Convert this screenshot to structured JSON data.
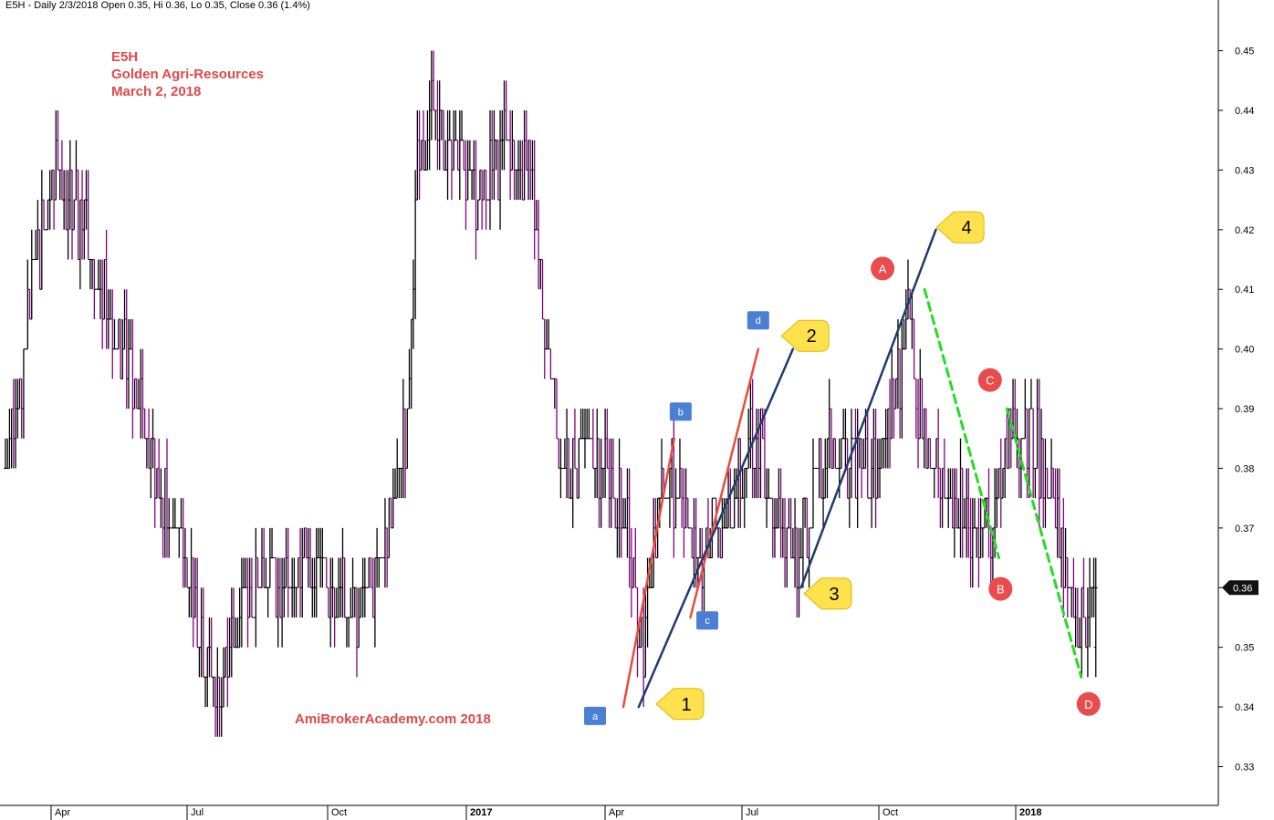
{
  "header": {
    "symbol": "E5H",
    "info": "Daily 2/3/2018 Open 0.35, Hi 0.36, Lo 0.35, Close 0.36 (1.4%)"
  },
  "title_lines": [
    "E5H",
    "Golden Agri-Resources",
    "March 2, 2018"
  ],
  "watermark": "AmiBrokerAcademy.com  2018",
  "chart_data": {
    "type": "bar",
    "subtype": "ohlc-price-bars",
    "y_ticks": [
      0.33,
      0.34,
      0.35,
      0.36,
      0.37,
      0.38,
      0.39,
      0.4,
      0.41,
      0.42,
      0.43,
      0.44,
      0.45
    ],
    "y_tick_labels": [
      "0.33",
      "0.34",
      "0.35",
      "0.36",
      "0.37",
      "0.38",
      "0.39",
      "0.40",
      "0.41",
      "0.42",
      "0.43",
      "0.44",
      "0.45"
    ],
    "ylim": [
      0.3235,
      0.4585
    ],
    "x_ticks": [
      {
        "label": "Apr",
        "bold": false
      },
      {
        "label": "Jul",
        "bold": false
      },
      {
        "label": "Oct",
        "bold": false
      },
      {
        "label": "2017",
        "bold": true
      },
      {
        "label": "Apr",
        "bold": false
      },
      {
        "label": "Jul",
        "bold": false
      },
      {
        "label": "Oct",
        "bold": false
      },
      {
        "label": "2018",
        "bold": true
      }
    ],
    "last_price_label": "0.36",
    "last_price": 0.36,
    "bar_colors": {
      "up": "#000000",
      "down": "#800080"
    },
    "price_path": [
      [
        0,
        0.38
      ],
      [
        6,
        0.43
      ],
      [
        10,
        0.42
      ],
      [
        14,
        0.4
      ],
      [
        17,
        0.39
      ],
      [
        20,
        0.37
      ],
      [
        23,
        0.36
      ],
      [
        26,
        0.34
      ],
      [
        29,
        0.355
      ],
      [
        33,
        0.36
      ],
      [
        37,
        0.365
      ],
      [
        40,
        0.36
      ],
      [
        43,
        0.355
      ],
      [
        46,
        0.36
      ],
      [
        48,
        0.375
      ],
      [
        50,
        0.39
      ],
      [
        51,
        0.43
      ],
      [
        53,
        0.44
      ],
      [
        56,
        0.43
      ],
      [
        59,
        0.425
      ],
      [
        62,
        0.435
      ],
      [
        65,
        0.43
      ],
      [
        67,
        0.4
      ],
      [
        69,
        0.38
      ],
      [
        72,
        0.385
      ],
      [
        74,
        0.38
      ],
      [
        76,
        0.375
      ],
      [
        77.5,
        0.365
      ],
      [
        78.5,
        0.345
      ],
      [
        80,
        0.365
      ],
      [
        82,
        0.38
      ],
      [
        84,
        0.375
      ],
      [
        86,
        0.365
      ],
      [
        88,
        0.37
      ],
      [
        90,
        0.375
      ],
      [
        93,
        0.385
      ],
      [
        96,
        0.37
      ],
      [
        98,
        0.365
      ],
      [
        100,
        0.375
      ],
      [
        102,
        0.385
      ],
      [
        105,
        0.38
      ],
      [
        108,
        0.38
      ],
      [
        110,
        0.39
      ],
      [
        111.5,
        0.405
      ],
      [
        113,
        0.39
      ],
      [
        115,
        0.38
      ],
      [
        118,
        0.375
      ],
      [
        120,
        0.37
      ],
      [
        122,
        0.37
      ],
      [
        124.5,
        0.385
      ],
      [
        127,
        0.385
      ],
      [
        130,
        0.375
      ],
      [
        132,
        0.355
      ],
      [
        133.5,
        0.355
      ],
      [
        135,
        0.36
      ]
    ],
    "annotations": {
      "lines": [
        {
          "color": "#e84c3c",
          "style": "solid",
          "from": [
            76.5,
            0.34
          ],
          "to": [
            82.8,
            0.385
          ]
        },
        {
          "color": "#e84c3c",
          "style": "solid",
          "from": [
            84.8,
            0.355
          ],
          "to": [
            93.2,
            0.4
          ]
        },
        {
          "color": "#1f3d6b",
          "style": "solid",
          "from": [
            78.4,
            0.34
          ],
          "to": [
            97.5,
            0.4
          ]
        },
        {
          "color": "#1f3d6b",
          "style": "solid",
          "from": [
            98.5,
            0.36
          ],
          "to": [
            115.2,
            0.42
          ]
        },
        {
          "color": "#22dd22",
          "style": "dashed",
          "from": [
            113.8,
            0.41
          ],
          "to": [
            123,
            0.365
          ]
        },
        {
          "color": "#22dd22",
          "style": "dashed",
          "from": [
            124,
            0.39
          ],
          "to": [
            133.2,
            0.345
          ]
        }
      ],
      "square_labels": [
        {
          "text": "a",
          "at": [
            73,
            0.3385
          ]
        },
        {
          "text": "b",
          "at": [
            83.6,
            0.3895
          ]
        },
        {
          "text": "c",
          "at": [
            86.9,
            0.3545
          ]
        },
        {
          "text": "d",
          "at": [
            93.2,
            0.4048
          ]
        }
      ],
      "callouts": [
        {
          "text": "1",
          "at": [
            84.3,
            0.3405
          ]
        },
        {
          "text": "2",
          "at": [
            99.8,
            0.4022
          ]
        },
        {
          "text": "3",
          "at": [
            102.6,
            0.359
          ]
        },
        {
          "text": "4",
          "at": [
            119,
            0.4204
          ]
        }
      ],
      "circle_labels": [
        {
          "text": "A",
          "at": [
            108.6,
            0.4135
          ]
        },
        {
          "text": "B",
          "at": [
            123.2,
            0.3598
          ]
        },
        {
          "text": "C",
          "at": [
            121.9,
            0.3948
          ]
        },
        {
          "text": "D",
          "at": [
            134.1,
            0.3405
          ]
        }
      ]
    }
  }
}
